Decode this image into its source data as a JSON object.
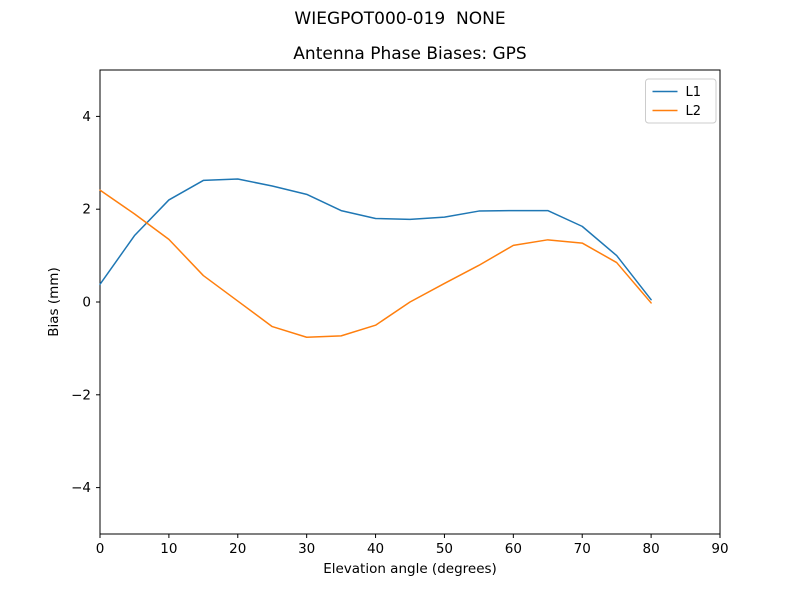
{
  "figure": {
    "suptitle": "WIEGPOT000-019  NONE"
  },
  "legend": {
    "entries": [
      {
        "label": "L1",
        "color": "#1f77b4"
      },
      {
        "label": "L2",
        "color": "#ff7f0e"
      }
    ],
    "position": "upper right"
  },
  "chart_data": {
    "type": "line",
    "title": "Antenna Phase Biases: GPS",
    "xlabel": "Elevation angle (degrees)",
    "ylabel": "Bias (mm)",
    "xlim": [
      0,
      90
    ],
    "ylim": [
      -5,
      5
    ],
    "xticks": [
      0,
      10,
      20,
      30,
      40,
      50,
      60,
      70,
      80,
      90
    ],
    "yticks": [
      -4,
      -2,
      0,
      2,
      4
    ],
    "grid": false,
    "legend_position": "upper right",
    "x": [
      0,
      5,
      10,
      15,
      20,
      25,
      30,
      35,
      40,
      45,
      50,
      55,
      60,
      65,
      70,
      75,
      80
    ],
    "series": [
      {
        "name": "L1",
        "color": "#1f77b4",
        "values": [
          0.38,
          1.43,
          2.2,
          2.62,
          2.65,
          2.5,
          2.32,
          1.97,
          1.8,
          1.78,
          1.83,
          1.96,
          1.97,
          1.97,
          1.63,
          1.0,
          0.05
        ]
      },
      {
        "name": "L2",
        "color": "#ff7f0e",
        "values": [
          2.41,
          1.9,
          1.35,
          0.57,
          0.02,
          -0.53,
          -0.76,
          -0.73,
          -0.5,
          0.0,
          0.4,
          0.79,
          1.22,
          1.34,
          1.27,
          0.85,
          -0.02
        ]
      }
    ]
  }
}
